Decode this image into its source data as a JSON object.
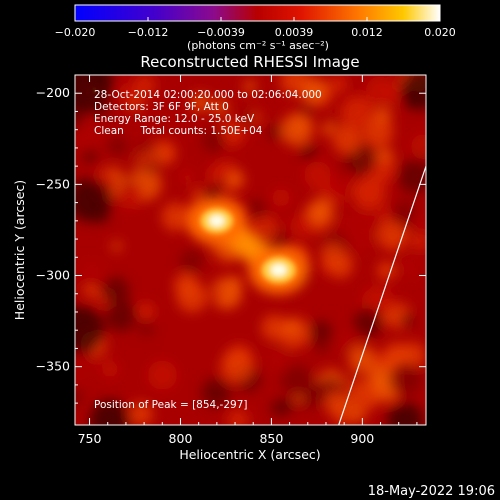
{
  "chart_data": {
    "type": "heatmap",
    "title": "Reconstructed RHESSI Image",
    "xlabel": "Heliocentric X (arcsec)",
    "ylabel": "Heliocentric Y (arcsec)",
    "xlim": [
      742,
      935
    ],
    "ylim": [
      -382,
      -190
    ],
    "x_ticks": [
      750,
      800,
      850,
      900
    ],
    "y_ticks": [
      -200,
      -250,
      -300,
      -350
    ],
    "colorbar": {
      "ticks": [
        "−0.020",
        "−0.012",
        "−0.0039",
        "0.0039",
        "0.012",
        "0.020"
      ],
      "range": [
        -0.02,
        0.02
      ],
      "unit_label": "(photons cm⁻² s⁻¹ asec⁻²)"
    },
    "info_lines": [
      "28-Oct-2014 02:00:20.000 to 02:06:04.000",
      "Detectors: 3F 6F 9F, Att 0",
      "Energy Range: 12.0 - 25.0 keV",
      "Clean     Total counts: 1.50E+04"
    ],
    "sources": [
      {
        "x": 820,
        "y": -270,
        "peak": 0.95
      },
      {
        "x": 854,
        "y": -297,
        "peak": 1.0
      }
    ],
    "peak_label": "Position of Peak = [854,-297]",
    "limb": [
      [
        887,
        -382
      ],
      [
        935,
        -240
      ]
    ]
  },
  "footer": {
    "timestamp": "18-May-2022 19:06"
  }
}
